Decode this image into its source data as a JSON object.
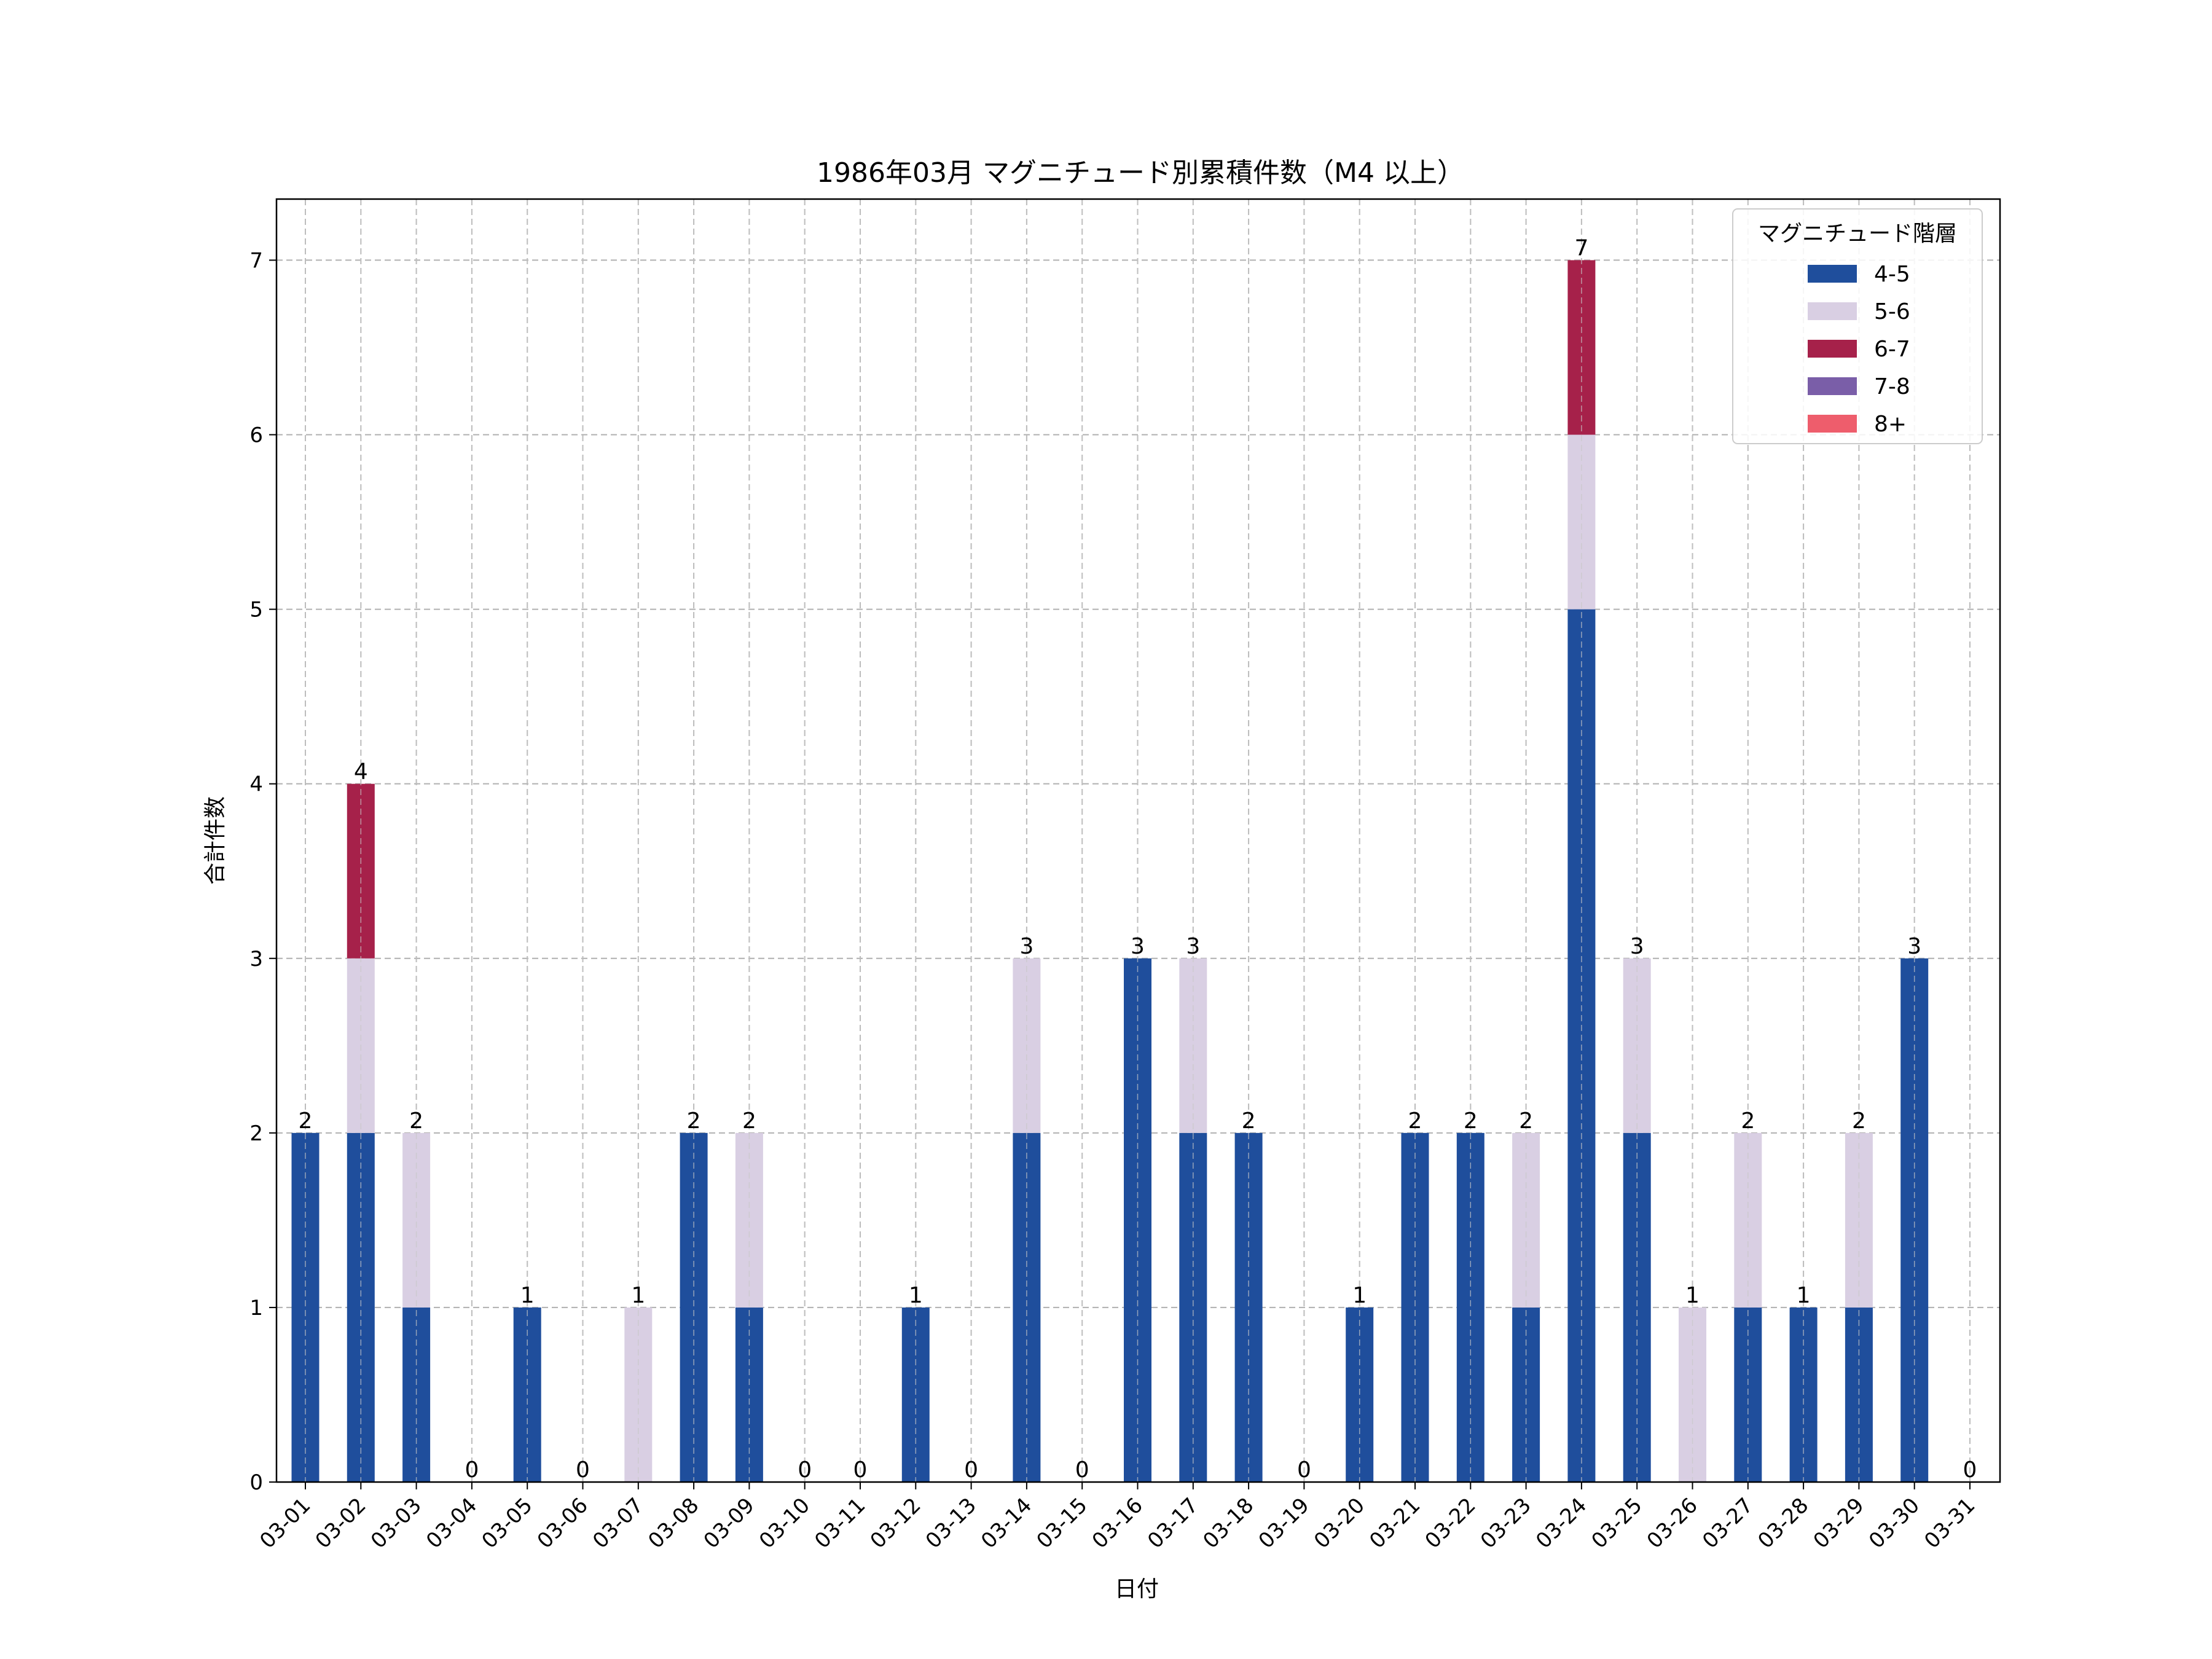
{
  "chart_data": {
    "type": "bar",
    "stacked": true,
    "title": "1986年03月 マグニチュード別累積件数（M4 以上）",
    "xlabel": "日付",
    "ylabel": "合計件数",
    "ylim": [
      0,
      7.35
    ],
    "yticks": [
      0,
      1,
      2,
      3,
      4,
      5,
      6,
      7
    ],
    "grid": true,
    "legend": {
      "title": "マグニチュード階層",
      "placement": "top-right"
    },
    "categories": [
      "03-01",
      "03-02",
      "03-03",
      "03-04",
      "03-05",
      "03-06",
      "03-07",
      "03-08",
      "03-09",
      "03-10",
      "03-11",
      "03-12",
      "03-13",
      "03-14",
      "03-15",
      "03-16",
      "03-17",
      "03-18",
      "03-19",
      "03-20",
      "03-21",
      "03-22",
      "03-23",
      "03-24",
      "03-25",
      "03-26",
      "03-27",
      "03-28",
      "03-29",
      "03-30",
      "03-31"
    ],
    "series": [
      {
        "name": "4-5",
        "color": "#1f4e9c",
        "values": [
          2,
          2,
          1,
          0,
          1,
          0,
          0,
          2,
          1,
          0,
          0,
          1,
          0,
          2,
          0,
          3,
          2,
          2,
          0,
          1,
          2,
          2,
          1,
          5,
          2,
          0,
          1,
          1,
          1,
          3,
          0
        ]
      },
      {
        "name": "5-6",
        "color": "#d9cfe3",
        "values": [
          0,
          1,
          1,
          0,
          0,
          0,
          1,
          0,
          1,
          0,
          0,
          0,
          0,
          1,
          0,
          0,
          1,
          0,
          0,
          0,
          0,
          0,
          1,
          1,
          1,
          1,
          1,
          0,
          1,
          0,
          0
        ]
      },
      {
        "name": "6-7",
        "color": "#a6214a",
        "values": [
          0,
          1,
          0,
          0,
          0,
          0,
          0,
          0,
          0,
          0,
          0,
          0,
          0,
          0,
          0,
          0,
          0,
          0,
          0,
          0,
          0,
          0,
          0,
          1,
          0,
          0,
          0,
          0,
          0,
          0,
          0
        ]
      },
      {
        "name": "7-8",
        "color": "#7a5ea8",
        "values": [
          0,
          0,
          0,
          0,
          0,
          0,
          0,
          0,
          0,
          0,
          0,
          0,
          0,
          0,
          0,
          0,
          0,
          0,
          0,
          0,
          0,
          0,
          0,
          0,
          0,
          0,
          0,
          0,
          0,
          0,
          0
        ]
      },
      {
        "name": "8+",
        "color": "#ee5d6c",
        "values": [
          0,
          0,
          0,
          0,
          0,
          0,
          0,
          0,
          0,
          0,
          0,
          0,
          0,
          0,
          0,
          0,
          0,
          0,
          0,
          0,
          0,
          0,
          0,
          0,
          0,
          0,
          0,
          0,
          0,
          0,
          0
        ]
      }
    ],
    "totals": [
      2,
      4,
      2,
      0,
      1,
      0,
      1,
      2,
      2,
      0,
      0,
      1,
      0,
      3,
      0,
      3,
      3,
      2,
      0,
      1,
      2,
      2,
      2,
      7,
      3,
      1,
      2,
      1,
      2,
      3,
      0
    ]
  }
}
